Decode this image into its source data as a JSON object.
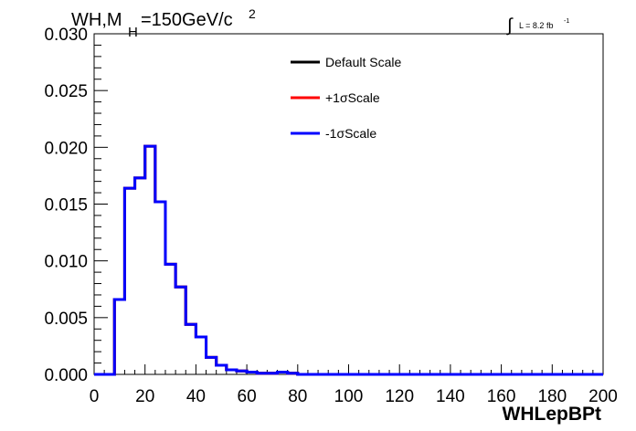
{
  "chart_data": {
    "type": "histogram",
    "title_main": "WH,M",
    "title_sub": "H",
    "title_rest": "=150GeV/c",
    "title_sup": "2",
    "lumi_label": "L = 8.2 fb",
    "lumi_sup": "-1",
    "lumi_integral": "∫",
    "xlabel": "WHLepBPt",
    "xlim": [
      0,
      200
    ],
    "ylim": [
      0,
      0.03
    ],
    "xticks": [
      "0",
      "20",
      "40",
      "60",
      "80",
      "100",
      "120",
      "140",
      "160",
      "180",
      "200"
    ],
    "yticks": [
      "0.000",
      "0.005",
      "0.010",
      "0.015",
      "0.020",
      "0.025",
      "0.030"
    ],
    "bin_width": 4,
    "bin_edges_start": 0,
    "series": [
      {
        "name": "Default Scale",
        "color": "#000000",
        "values": [
          0,
          0,
          0.0066,
          0.0164,
          0.0173,
          0.0201,
          0.0152,
          0.0097,
          0.0077,
          0.0044,
          0.0033,
          0.0015,
          0.0008,
          0.0004,
          0.0003,
          0.0002,
          0.0001,
          0.0001,
          0.0002,
          0.0001,
          0,
          0,
          0,
          0,
          0,
          0,
          0,
          0,
          0,
          0,
          0,
          0,
          0,
          0,
          0,
          0,
          0,
          0,
          0,
          0,
          0,
          0,
          0,
          0,
          0,
          0,
          0,
          0,
          0,
          0
        ]
      },
      {
        "name": "+1σScale",
        "color": "#ff0000",
        "values": [
          0,
          0,
          0.0066,
          0.0164,
          0.0173,
          0.0201,
          0.0152,
          0.0097,
          0.0077,
          0.0044,
          0.0033,
          0.0015,
          0.0008,
          0.0004,
          0.0003,
          0.0002,
          0.0001,
          0.0001,
          0.0002,
          0.0001,
          0,
          0,
          0,
          0,
          0,
          0,
          0,
          0,
          0,
          0,
          0,
          0,
          0,
          0,
          0,
          0,
          0,
          0,
          0,
          0,
          0,
          0,
          0,
          0,
          0,
          0,
          0,
          0,
          0,
          0
        ]
      },
      {
        "name": "-1σScale",
        "color": "#0000ff",
        "values": [
          0,
          0,
          0.0066,
          0.0164,
          0.0173,
          0.0201,
          0.0152,
          0.0097,
          0.0077,
          0.0044,
          0.0033,
          0.0015,
          0.0008,
          0.0004,
          0.0003,
          0.0002,
          0.0001,
          0.0001,
          0.0002,
          0.0001,
          0,
          0,
          0,
          0,
          0,
          0,
          0,
          0,
          0,
          0,
          0,
          0,
          0,
          0,
          0,
          0,
          0,
          0,
          0,
          0,
          0,
          0,
          0,
          0,
          0,
          0,
          0,
          0,
          0,
          0
        ]
      }
    ],
    "legend_position": "top-center"
  }
}
